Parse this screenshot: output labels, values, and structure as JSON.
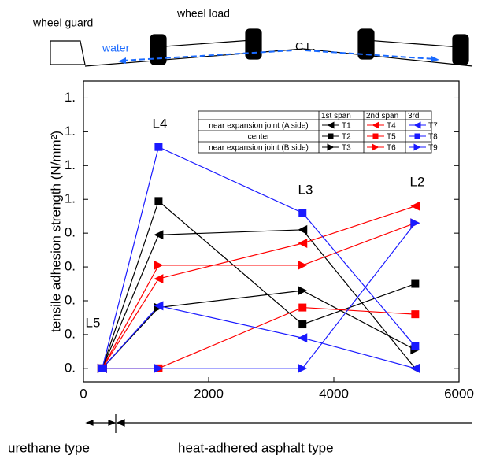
{
  "diagram": {
    "wheel_guard": "wheel guard",
    "wheel_load": "wheel load",
    "water": "water",
    "center_line": "C.L."
  },
  "chart_data": {
    "type": "line",
    "ylabel": "tensile adhesion strength (N/mm²)",
    "x": [
      300,
      1200,
      3500,
      5300
    ],
    "xlim": [
      0,
      6000
    ],
    "xticks": [
      0,
      2000,
      4000,
      6000
    ],
    "ylim": [
      -0.08,
      1.7
    ],
    "yticks": [
      {
        "value": 0,
        "label": "0."
      },
      {
        "value": 0.2,
        "label": "0."
      },
      {
        "value": 0.4,
        "label": "0."
      },
      {
        "value": 0.6,
        "label": "0."
      },
      {
        "value": 0.8,
        "label": "0."
      },
      {
        "value": 1.0,
        "label": "1."
      },
      {
        "value": 1.2,
        "label": "1."
      },
      {
        "value": 1.4,
        "label": "1."
      },
      {
        "value": 1.6,
        "label": "1."
      }
    ],
    "annotations": [
      "L5",
      "L4",
      "L3",
      "L2"
    ],
    "legend_columns": [
      "1st span",
      "2nd span",
      "3rd"
    ],
    "legend_rows": [
      "near expansion joint (A side)",
      "center",
      "near expansion joint (B side)"
    ],
    "series": [
      {
        "name": "T1",
        "color": "#000000",
        "marker": "left",
        "values": [
          0,
          0.79,
          0.82,
          0
        ]
      },
      {
        "name": "T2",
        "color": "#000000",
        "marker": "square",
        "values": [
          0,
          0.99,
          0.26,
          0.5
        ]
      },
      {
        "name": "T3",
        "color": "#000000",
        "marker": "right",
        "values": [
          0,
          0.36,
          0.46,
          0.11
        ]
      },
      {
        "name": "T4",
        "color": "#ff0000",
        "marker": "left",
        "values": [
          0,
          0.53,
          0.74,
          0.96
        ]
      },
      {
        "name": "T5",
        "color": "#ff0000",
        "marker": "square",
        "values": [
          0,
          0,
          0.36,
          0.32
        ]
      },
      {
        "name": "T6",
        "color": "#ff0000",
        "marker": "right",
        "values": [
          0,
          0.61,
          0.61,
          0.86
        ]
      },
      {
        "name": "T7",
        "color": "#1a1aff",
        "marker": "left",
        "values": [
          0,
          0.37,
          0.18,
          0
        ]
      },
      {
        "name": "T8",
        "color": "#1a1aff",
        "marker": "square",
        "values": [
          0,
          1.31,
          0.92,
          0.13
        ]
      },
      {
        "name": "T9",
        "color": "#1a1aff",
        "marker": "right",
        "values": [
          0,
          0,
          0,
          0.86
        ]
      }
    ]
  },
  "footer": {
    "urethane": "urethane type",
    "asphalt": "heat-adhered asphalt type"
  }
}
